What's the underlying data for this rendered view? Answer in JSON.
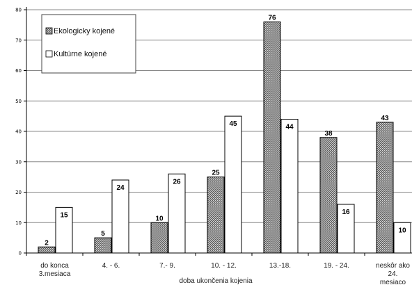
{
  "chart_data": {
    "type": "bar",
    "categories": [
      [
        "do konca",
        "3.mesiaca"
      ],
      [
        "4. - 6."
      ],
      [
        "7.- 9."
      ],
      [
        "10. -  12."
      ],
      [
        "13.-18."
      ],
      [
        "19. - 24."
      ],
      [
        "neskôr ako",
        "24.",
        "mesiaco"
      ]
    ],
    "series": [
      {
        "name": "Ekologicky kojené",
        "values": [
          2,
          5,
          10,
          25,
          76,
          38,
          43
        ]
      },
      {
        "name": "Kultúrne kojené",
        "values": [
          15,
          24,
          26,
          45,
          44,
          16,
          10
        ]
      }
    ],
    "xlabel": "doba ukončenia kojenia",
    "ylabel": "",
    "ylim": [
      0,
      80
    ],
    "yticks": [
      0,
      10,
      20,
      30,
      40,
      50,
      60,
      70,
      80
    ],
    "grid": true,
    "legend": "top-left",
    "colors": {
      "series1": "#6b6b6b",
      "series2": "#ffffff",
      "grid": "#888888",
      "axis": "#000000"
    }
  }
}
